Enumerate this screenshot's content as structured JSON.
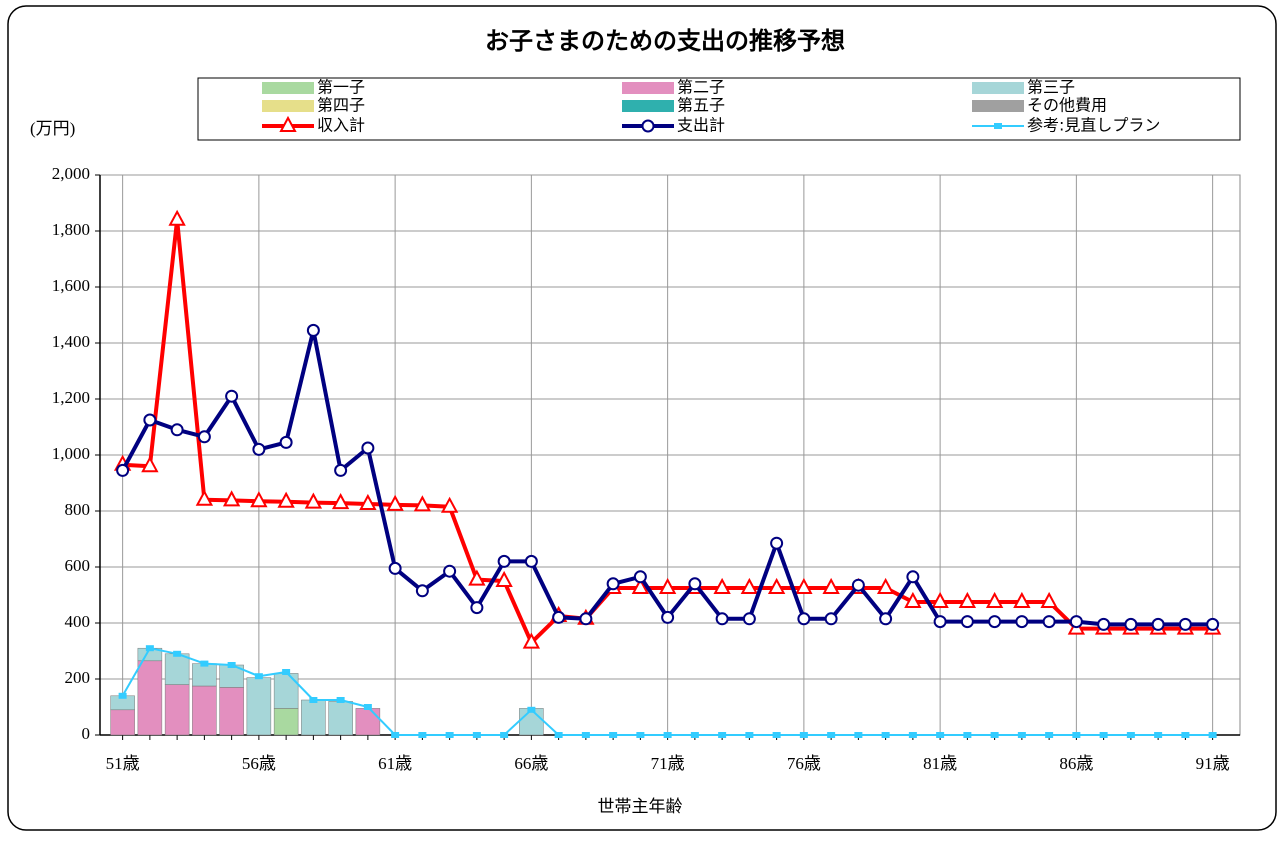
{
  "chart_data": {
    "type": "combo",
    "title": "お子さまのための支出の推移予想",
    "y_label": "(万円)",
    "x_label": "世帯主年齢",
    "categories": [
      "51歳",
      null,
      null,
      null,
      null,
      "56歳",
      null,
      null,
      null,
      null,
      "61歳",
      null,
      null,
      null,
      null,
      "66歳",
      null,
      null,
      null,
      null,
      "71歳",
      null,
      null,
      null,
      null,
      "76歳",
      null,
      null,
      null,
      null,
      "81歳",
      null,
      null,
      null,
      null,
      "86歳",
      null,
      null,
      null,
      null,
      "91歳"
    ],
    "ylim": [
      0,
      2000
    ],
    "yticks": [
      0,
      200,
      400,
      600,
      800,
      {
        "value": 1000,
        "label": "1,000"
      },
      {
        "value": 1200,
        "label": "1,200"
      },
      {
        "value": 1400,
        "label": "1,400"
      },
      {
        "value": 1600,
        "label": "1,600"
      },
      {
        "value": 1800,
        "label": "1,800"
      },
      {
        "value": 2000,
        "label": "2,000"
      }
    ],
    "grid": true,
    "series": [
      {
        "name": "第一子",
        "type": "bar",
        "color": "#a9d9a0",
        "values": [
          0,
          0,
          0,
          0,
          0,
          0,
          95,
          0,
          0,
          0,
          0,
          0,
          0,
          0,
          0,
          0,
          0,
          0,
          0,
          0,
          0,
          0,
          0,
          0,
          0,
          0,
          0,
          0,
          0,
          0,
          0,
          0,
          0,
          0,
          0,
          0,
          0,
          0,
          0,
          0,
          0
        ]
      },
      {
        "name": "第二子",
        "type": "bar",
        "color": "#e38fbf",
        "values": [
          90,
          265,
          180,
          175,
          170,
          0,
          0,
          0,
          0,
          95,
          0,
          0,
          0,
          0,
          0,
          0,
          0,
          0,
          0,
          0,
          0,
          0,
          0,
          0,
          0,
          0,
          0,
          0,
          0,
          0,
          0,
          0,
          0,
          0,
          0,
          0,
          0,
          0,
          0,
          0,
          0
        ]
      },
      {
        "name": "第三子",
        "type": "bar",
        "color": "#a6d6d8",
        "values": [
          50,
          45,
          110,
          80,
          80,
          205,
          125,
          125,
          120,
          0,
          0,
          0,
          0,
          0,
          0,
          95,
          0,
          0,
          0,
          0,
          0,
          0,
          0,
          0,
          0,
          0,
          0,
          0,
          0,
          0,
          0,
          0,
          0,
          0,
          0,
          0,
          0,
          0,
          0,
          0,
          0
        ]
      },
      {
        "name": "第四子",
        "type": "bar",
        "color": "#e6df8a",
        "values": [
          0,
          0,
          0,
          0,
          0,
          0,
          0,
          0,
          0,
          0,
          0,
          0,
          0,
          0,
          0,
          0,
          0,
          0,
          0,
          0,
          0,
          0,
          0,
          0,
          0,
          0,
          0,
          0,
          0,
          0,
          0,
          0,
          0,
          0,
          0,
          0,
          0,
          0,
          0,
          0,
          0
        ]
      },
      {
        "name": "第五子",
        "type": "bar",
        "color": "#2fb0ae",
        "values": [
          0,
          0,
          0,
          0,
          0,
          0,
          0,
          0,
          0,
          0,
          0,
          0,
          0,
          0,
          0,
          0,
          0,
          0,
          0,
          0,
          0,
          0,
          0,
          0,
          0,
          0,
          0,
          0,
          0,
          0,
          0,
          0,
          0,
          0,
          0,
          0,
          0,
          0,
          0,
          0,
          0
        ]
      },
      {
        "name": "その他費用",
        "type": "bar",
        "color": "#a0a0a0",
        "values": [
          0,
          0,
          0,
          0,
          0,
          0,
          0,
          0,
          0,
          0,
          0,
          0,
          0,
          0,
          0,
          0,
          0,
          0,
          0,
          0,
          0,
          0,
          0,
          0,
          0,
          0,
          0,
          0,
          0,
          0,
          0,
          0,
          0,
          0,
          0,
          0,
          0,
          0,
          0,
          0,
          0
        ]
      },
      {
        "name": "収入計",
        "type": "line",
        "marker": "triangle",
        "color": "#ff0000",
        "values": [
          965,
          960,
          1840,
          840,
          838,
          835,
          833,
          830,
          828,
          825,
          822,
          820,
          815,
          555,
          550,
          330,
          425,
          415,
          525,
          525,
          525,
          525,
          525,
          525,
          525,
          525,
          525,
          525,
          525,
          475,
          475,
          475,
          475,
          475,
          475,
          380,
          380,
          380,
          380,
          380,
          380
        ]
      },
      {
        "name": "支出計",
        "type": "line",
        "marker": "circle",
        "color": "#000080",
        "values": [
          945,
          1125,
          1090,
          1065,
          1210,
          1020,
          1045,
          1445,
          945,
          1025,
          595,
          515,
          585,
          455,
          620,
          620,
          420,
          415,
          540,
          565,
          420,
          540,
          415,
          415,
          685,
          415,
          415,
          535,
          415,
          565,
          405,
          405,
          405,
          405,
          405,
          405,
          395,
          395,
          395,
          395,
          395
        ]
      },
      {
        "name": "参考:見直しプラン",
        "type": "line",
        "marker": "square",
        "color": "#33ccff",
        "values": [
          140,
          310,
          290,
          255,
          250,
          210,
          225,
          125,
          125,
          100,
          0,
          0,
          0,
          0,
          0,
          90,
          0,
          0,
          0,
          0,
          0,
          0,
          0,
          0,
          0,
          0,
          0,
          0,
          0,
          0,
          0,
          0,
          0,
          0,
          0,
          0,
          0,
          0,
          0,
          0,
          0
        ]
      }
    ]
  }
}
